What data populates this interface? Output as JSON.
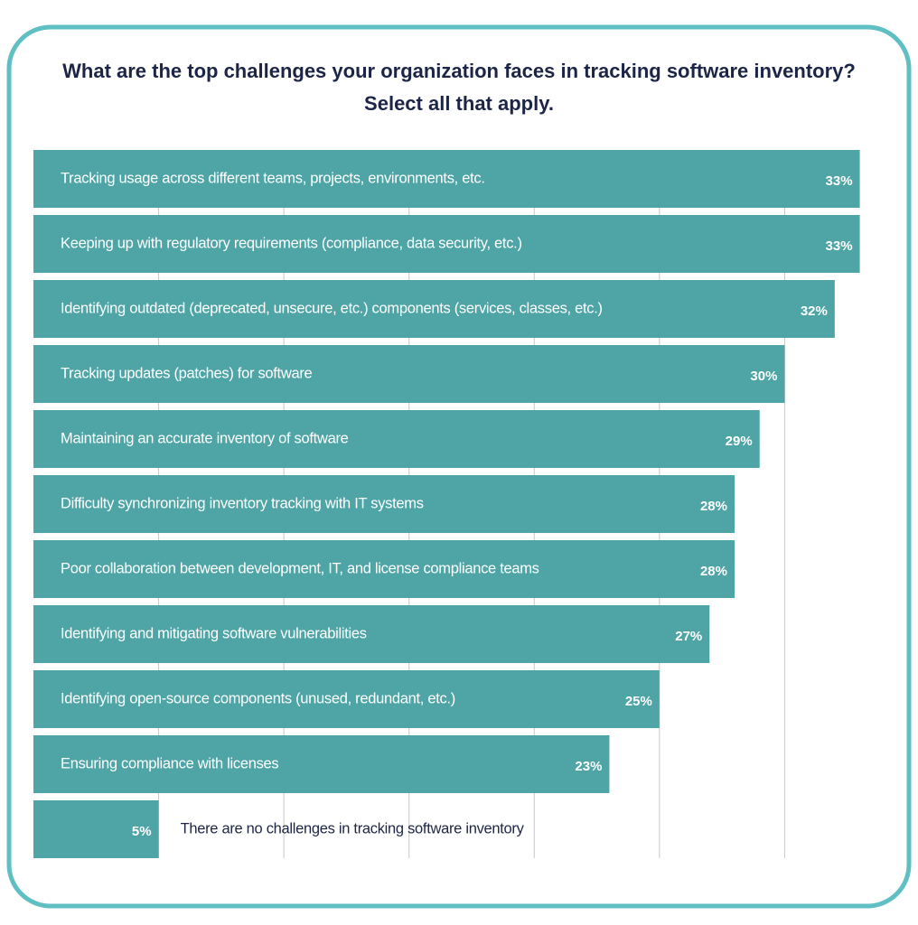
{
  "chart_data": {
    "type": "hbar",
    "title": "What are the top challenges your organization faces in tracking software inventory?",
    "subtitle": "Select all that apply.",
    "categories": [
      "Tracking usage across different teams, projects, environments, etc.",
      "Keeping up with regulatory requirements (compliance, data security, etc.)",
      "Identifying outdated (deprecated, unsecure, etc.) components (services, classes, etc.)",
      "Tracking updates (patches) for software",
      "Maintaining an accurate inventory of software",
      "Difficulty synchronizing inventory tracking with IT systems",
      "Poor collaboration between development, IT, and license compliance teams",
      "Identifying and mitigating software vulnerabilities",
      "Identifying open-source components (unused, redundant, etc.)",
      "Ensuring compliance with licenses",
      "There are no challenges in tracking software inventory"
    ],
    "values": [
      33,
      33,
      32,
      30,
      29,
      28,
      28,
      27,
      25,
      23,
      5
    ],
    "value_labels": [
      "33%",
      "33%",
      "32%",
      "30%",
      "29%",
      "28%",
      "28%",
      "27%",
      "25%",
      "23%",
      "5%"
    ],
    "color": "#4fa5a6",
    "xlim": [
      0,
      35
    ],
    "xticks": [
      5,
      10,
      15,
      20,
      25,
      30
    ],
    "grid": true
  }
}
